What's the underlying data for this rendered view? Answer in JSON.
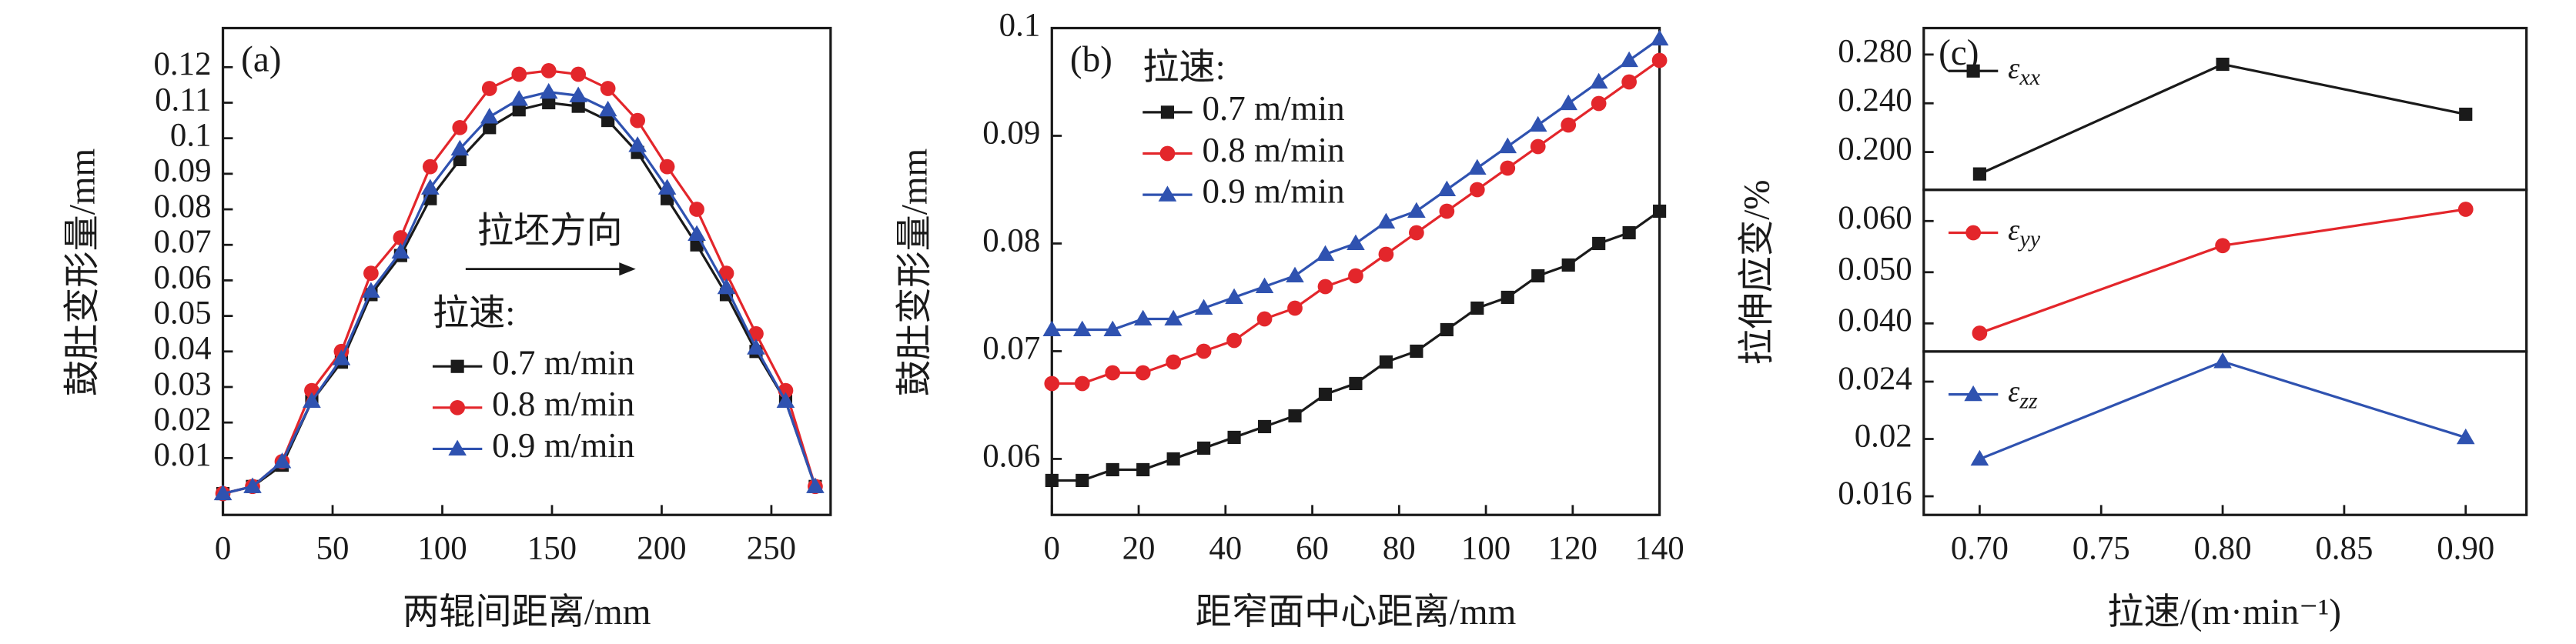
{
  "chart_data": [
    {
      "type": "line",
      "title": "(a)",
      "x_label": "两辊间距离/mm",
      "y_label": "鼓肚变形量/mm",
      "legend_title": "拉速:",
      "annotation": "拉坯方向",
      "x": [
        0,
        13.5,
        27,
        40.5,
        54,
        67.5,
        81,
        94.5,
        108,
        121.5,
        135,
        148.5,
        162,
        175.5,
        189,
        202.5,
        216,
        229.5,
        243,
        256.5,
        270
      ],
      "series": [
        {
          "name": "0.7 m/min",
          "color": "#1a1a1a",
          "marker": "square",
          "values": [
            0,
            0.002,
            0.008,
            0.026,
            0.037,
            0.056,
            0.067,
            0.083,
            0.094,
            0.103,
            0.108,
            0.11,
            0.109,
            0.105,
            0.096,
            0.083,
            0.07,
            0.056,
            0.04,
            0.026,
            0.002
          ]
        },
        {
          "name": "0.8 m/min",
          "color": "#e3262b",
          "marker": "circle",
          "values": [
            0,
            0.002,
            0.009,
            0.029,
            0.04,
            0.062,
            0.072,
            0.092,
            0.103,
            0.114,
            0.118,
            0.119,
            0.118,
            0.114,
            0.105,
            0.092,
            0.08,
            0.062,
            0.045,
            0.029,
            0.002
          ]
        },
        {
          "name": "0.9 m/min",
          "color": "#2f52b0",
          "marker": "triangle",
          "values": [
            0,
            0.002,
            0.009,
            0.026,
            0.038,
            0.057,
            0.068,
            0.086,
            0.097,
            0.106,
            0.111,
            0.113,
            0.112,
            0.108,
            0.098,
            0.086,
            0.073,
            0.058,
            0.041,
            0.026,
            0.002
          ]
        }
      ],
      "xlim": [
        0,
        277
      ],
      "ylim": [
        -0.006,
        0.131
      ],
      "xticks": [
        0,
        50,
        100,
        150,
        200,
        250
      ],
      "yticks": [
        0.01,
        0.02,
        0.03,
        0.04,
        0.05,
        0.06,
        0.07,
        0.08,
        0.09,
        0.1,
        0.11,
        0.12
      ]
    },
    {
      "type": "line",
      "title": "(b)",
      "x_label": "距窄面中心距离/mm",
      "y_label": "鼓肚变形量/mm",
      "legend_title": "拉速:",
      "x": [
        0,
        7,
        14,
        21,
        28,
        35,
        42,
        49,
        56,
        63,
        70,
        77,
        84,
        91,
        98,
        105,
        112,
        119,
        126,
        133,
        140
      ],
      "series": [
        {
          "name": "0.7 m/min",
          "color": "#1a1a1a",
          "marker": "square",
          "values": [
            0.058,
            0.058,
            0.059,
            0.059,
            0.06,
            0.061,
            0.062,
            0.063,
            0.064,
            0.066,
            0.067,
            0.069,
            0.07,
            0.072,
            0.074,
            0.075,
            0.077,
            0.078,
            0.08,
            0.081,
            0.083
          ]
        },
        {
          "name": "0.8 m/min",
          "color": "#e3262b",
          "marker": "circle",
          "values": [
            0.067,
            0.067,
            0.068,
            0.068,
            0.069,
            0.07,
            0.071,
            0.073,
            0.074,
            0.076,
            0.077,
            0.079,
            0.081,
            0.083,
            0.085,
            0.087,
            0.089,
            0.091,
            0.093,
            0.095,
            0.097
          ]
        },
        {
          "name": "0.9 m/min",
          "color": "#2f52b0",
          "marker": "triangle",
          "values": [
            0.072,
            0.072,
            0.072,
            0.073,
            0.073,
            0.074,
            0.075,
            0.076,
            0.077,
            0.079,
            0.08,
            0.082,
            0.083,
            0.085,
            0.087,
            0.089,
            0.091,
            0.093,
            0.095,
            0.097,
            0.099
          ]
        }
      ],
      "xlim": [
        0,
        140
      ],
      "ylim": [
        0.0548,
        0.1
      ],
      "xticks": [
        0,
        20,
        40,
        60,
        80,
        100,
        120,
        140
      ],
      "yticks": [
        0.06,
        0.07,
        0.08,
        0.09,
        0.1
      ]
    },
    {
      "type": "line",
      "title": "(c)",
      "y_label": "拉伸应变/%",
      "x": [
        0.7,
        0.8,
        0.9
      ],
      "series": [
        {
          "name": "εxx",
          "color": "#1a1a1a",
          "marker": "square",
          "values": [
            0.182,
            0.272,
            0.231
          ]
        }
      ],
      "xlim": [
        0.677,
        0.925
      ],
      "ylim": [
        0.169,
        0.3017
      ],
      "yticks": [
        {
          "value": 0.2,
          "label": "0.200"
        },
        {
          "value": 0.24,
          "label": "0.240"
        },
        {
          "value": 0.28,
          "label": "0.280"
        }
      ]
    },
    {
      "type": "line",
      "x": [
        0.7,
        0.8,
        0.9
      ],
      "series": [
        {
          "name": "εyy",
          "color": "#e3262b",
          "marker": "circle",
          "values": [
            0.0381,
            0.0552,
            0.0623
          ]
        }
      ],
      "xlim": [
        0.677,
        0.925
      ],
      "ylim": [
        0.0345,
        0.0661
      ],
      "yticks": [
        {
          "value": 0.04,
          "label": "0.040"
        },
        {
          "value": 0.05,
          "label": "0.050"
        },
        {
          "value": 0.06,
          "label": "0.060"
        }
      ]
    },
    {
      "type": "line",
      "x_label": "拉速/(m·min⁻¹)",
      "x": [
        0.7,
        0.8,
        0.9
      ],
      "series": [
        {
          "name": "εzz",
          "color": "#2f52b0",
          "marker": "triangle",
          "values": [
            0.0186,
            0.0254,
            0.0201
          ]
        }
      ],
      "xlim": [
        0.677,
        0.925
      ],
      "ylim": [
        0.0147,
        0.0261
      ],
      "xticks": [
        {
          "value": 0.7,
          "label": "0.70"
        },
        {
          "value": 0.75,
          "label": "0.75"
        },
        {
          "value": 0.8,
          "label": "0.80"
        },
        {
          "value": 0.85,
          "label": "0.85"
        },
        {
          "value": 0.9,
          "label": "0.90"
        }
      ],
      "yticks": [
        0.016,
        0.02,
        0.024
      ]
    }
  ]
}
